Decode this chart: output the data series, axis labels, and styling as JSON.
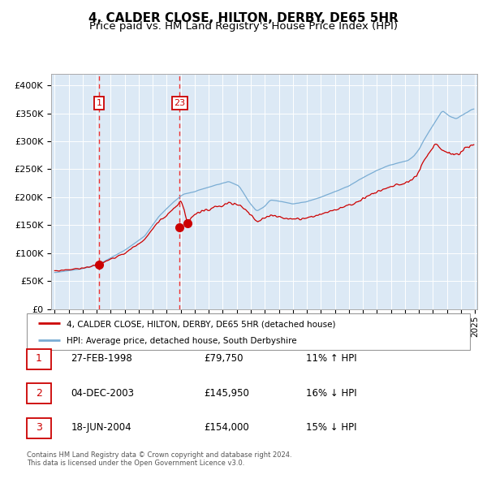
{
  "title": "4, CALDER CLOSE, HILTON, DERBY, DE65 5HR",
  "subtitle": "Price paid vs. HM Land Registry's House Price Index (HPI)",
  "title_fontsize": 11,
  "subtitle_fontsize": 9.5,
  "price_paid": [
    {
      "date": "1998-02-27",
      "price": 79750,
      "label": "1"
    },
    {
      "date": "2003-12-04",
      "price": 145950,
      "label": "2"
    },
    {
      "date": "2004-06-18",
      "price": 154000,
      "label": "3"
    }
  ],
  "vline_dates": [
    "1998-02-27",
    "2003-12-04"
  ],
  "legend_labels": [
    "4, CALDER CLOSE, HILTON, DERBY, DE65 5HR (detached house)",
    "HPI: Average price, detached house, South Derbyshire"
  ],
  "table_rows": [
    {
      "num": "1",
      "date": "27-FEB-1998",
      "price": "£79,750",
      "hpi": "11% ↑ HPI"
    },
    {
      "num": "2",
      "date": "04-DEC-2003",
      "price": "£145,950",
      "hpi": "16% ↓ HPI"
    },
    {
      "num": "3",
      "date": "18-JUN-2004",
      "price": "£154,000",
      "hpi": "15% ↓ HPI"
    }
  ],
  "footer": "Contains HM Land Registry data © Crown copyright and database right 2024.\nThis data is licensed under the Open Government Licence v3.0.",
  "ylim": [
    0,
    420000
  ],
  "yticks": [
    0,
    50000,
    100000,
    150000,
    200000,
    250000,
    300000,
    350000,
    400000
  ],
  "ytick_labels": [
    "£0",
    "£50K",
    "£100K",
    "£150K",
    "£200K",
    "£250K",
    "£300K",
    "£350K",
    "£400K"
  ],
  "red_line_color": "#cc0000",
  "blue_line_color": "#7aadd4",
  "bg_color": "#dce9f5",
  "grid_color": "#ffffff",
  "vline_color": "#ee3333",
  "dot_color": "#cc0000",
  "box_color": "#cc0000",
  "box_text_color": "#cc0000"
}
